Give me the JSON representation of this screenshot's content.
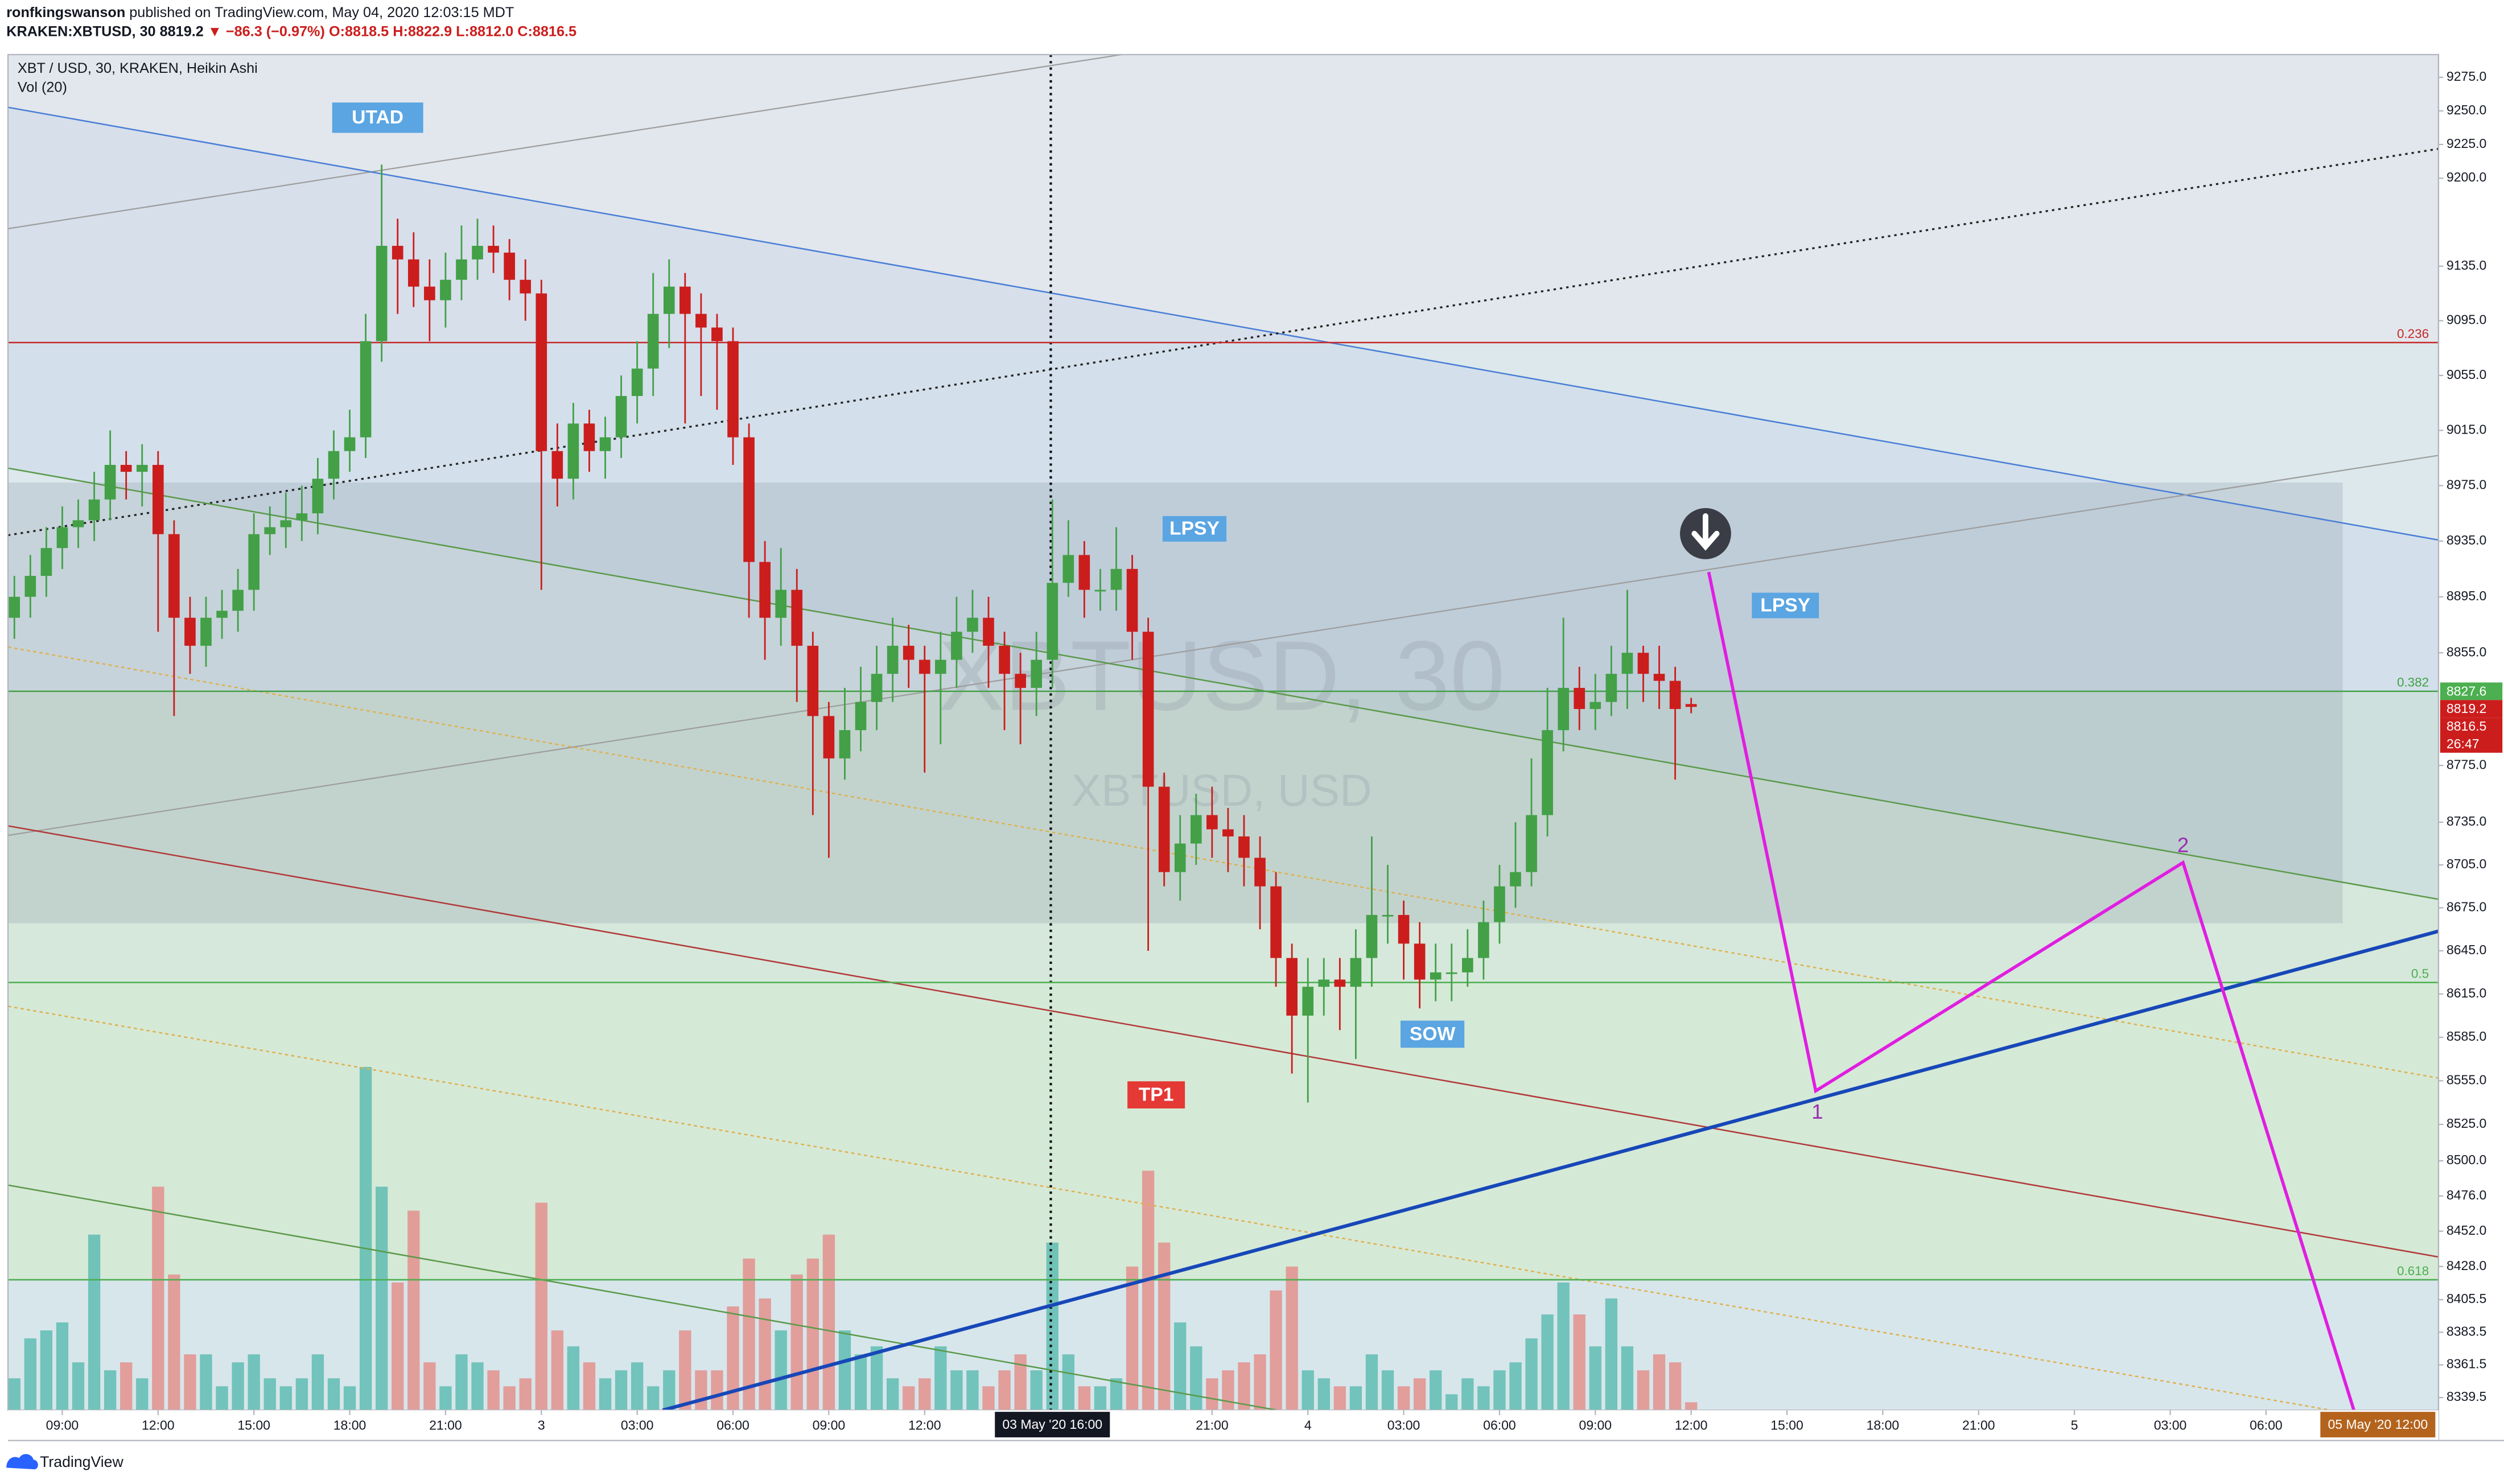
{
  "chart_data": {
    "type": "candlestick",
    "publisher": "ronfkingswanson",
    "published": "published on TradingView.com, May 04, 2020 12:03:15 MDT",
    "symbol": "KRAKEN:XBTUSD, 30",
    "last": "8819.2",
    "change": "▼ −86.3 (−0.97%)",
    "ohlc": [
      "O:8818.5",
      "H:8822.9",
      "L:8812.0",
      "C:8816.5"
    ],
    "title": "XBT / USD, 30, KRAKEN, Heikin Ashi",
    "watermark": [
      "XBTUSD, 30",
      "XBTUSD, USD"
    ],
    "brand": "TradingView",
    "up_color": "#43a047",
    "down_color": "#cc1d1d",
    "log_scale": true,
    "grid": false,
    "ylim": [
      8331,
      9292
    ],
    "xlim": [
      -0.4,
      151.8
    ],
    "yticks": [
      {
        "value": 9275,
        "label": "9275.0"
      },
      {
        "value": 9250,
        "label": "9250.0"
      },
      {
        "value": 9225,
        "label": "9225.0"
      },
      {
        "value": 9200,
        "label": "9200.0"
      },
      {
        "value": 9135,
        "label": "9135.0"
      },
      {
        "value": 9095,
        "label": "9095.0"
      },
      {
        "value": 9055,
        "label": "9055.0"
      },
      {
        "value": 9015,
        "label": "9015.0"
      },
      {
        "value": 8975,
        "label": "8975.0"
      },
      {
        "value": 8935,
        "label": "8935.0"
      },
      {
        "value": 8895,
        "label": "8895.0"
      },
      {
        "value": 8855,
        "label": "8855.0"
      },
      {
        "value": 8775,
        "label": "8775.0"
      },
      {
        "value": 8735,
        "label": "8735.0"
      },
      {
        "value": 8705,
        "label": "8705.0"
      },
      {
        "value": 8675,
        "label": "8675.0"
      },
      {
        "value": 8645,
        "label": "8645.0"
      },
      {
        "value": 8615,
        "label": "8615.0"
      },
      {
        "value": 8585,
        "label": "8585.0"
      },
      {
        "value": 8555,
        "label": "8555.0"
      },
      {
        "value": 8525,
        "label": "8525.0"
      },
      {
        "value": 8500,
        "label": "8500.0"
      },
      {
        "value": 8476,
        "label": "8476.0"
      },
      {
        "value": 8452,
        "label": "8452.0"
      },
      {
        "value": 8428,
        "label": "8428.0"
      },
      {
        "value": 8405.5,
        "label": "8405.5"
      },
      {
        "value": 8383.5,
        "label": "8383.5"
      },
      {
        "value": 8361.5,
        "label": "8361.5"
      },
      {
        "value": 8339.5,
        "label": "8339.5"
      }
    ],
    "xticks": [
      {
        "value": 3,
        "label": "09:00"
      },
      {
        "value": 9,
        "label": "12:00"
      },
      {
        "value": 15,
        "label": "15:00"
      },
      {
        "value": 21,
        "label": "18:00"
      },
      {
        "value": 27,
        "label": "21:00"
      },
      {
        "value": 33,
        "label": "3"
      },
      {
        "value": 39,
        "label": "03:00"
      },
      {
        "value": 45,
        "label": "06:00"
      },
      {
        "value": 51,
        "label": "09:00"
      },
      {
        "value": 57,
        "label": "12:00"
      },
      {
        "value": 75,
        "label": "21:00"
      },
      {
        "value": 81,
        "label": "4"
      },
      {
        "value": 87,
        "label": "03:00"
      },
      {
        "value": 93,
        "label": "06:00"
      },
      {
        "value": 99,
        "label": "09:00"
      },
      {
        "value": 105,
        "label": "12:00"
      },
      {
        "value": 111,
        "label": "15:00"
      },
      {
        "value": 117,
        "label": "18:00"
      },
      {
        "value": 123,
        "label": "21:00"
      },
      {
        "value": 129,
        "label": "5"
      },
      {
        "value": 135,
        "label": "03:00"
      },
      {
        "value": 141,
        "label": "06:00"
      }
    ],
    "crosshair_labels": [
      {
        "value": 65,
        "label": "03 May '20   16:00",
        "color": "#131722"
      },
      {
        "value": 148,
        "label": "05 May '20   12:00",
        "color": "#b4631d"
      }
    ],
    "open": [
      8880,
      8895,
      8910,
      8930,
      8945,
      8950,
      8965,
      8990,
      8985,
      8990,
      8940,
      8880,
      8860,
      8880,
      8885,
      8900,
      8940,
      8945,
      8950,
      8955,
      8980,
      9000,
      9010,
      9080,
      9150,
      9140,
      9120,
      9110,
      9125,
      9140,
      9150,
      9145,
      9125,
      9115,
      9000,
      8980,
      9020,
      9000,
      9010,
      9040,
      9060,
      9100,
      9120,
      9100,
      9090,
      9080,
      9010,
      8920,
      8880,
      8900,
      8860,
      8810,
      8780,
      8800,
      8820,
      8840,
      8860,
      8850,
      8840,
      8850,
      8870,
      8880,
      8860,
      8840,
      8830,
      8850,
      8905,
      8925,
      8900,
      8900,
      8915,
      8870,
      8760,
      8700,
      8720,
      8740,
      8730,
      8725,
      8710,
      8690,
      8640,
      8600,
      8620,
      8625,
      8620,
      8640,
      8670,
      8670,
      8650,
      8625,
      8630,
      8630,
      8640,
      8665,
      8690,
      8700,
      8740,
      8800,
      8830,
      8815,
      8820,
      8840,
      8855,
      8840,
      8835,
      8818.5
    ],
    "high": [
      8910,
      8925,
      8945,
      8960,
      8965,
      8985,
      9015,
      9000,
      9005,
      9000,
      8950,
      8895,
      8895,
      8900,
      8915,
      8955,
      8960,
      8970,
      8975,
      8995,
      9015,
      9030,
      9100,
      9210,
      9170,
      9160,
      9140,
      9145,
      9165,
      9170,
      9165,
      9155,
      9140,
      9125,
      9020,
      9035,
      9030,
      9025,
      9055,
      9080,
      9130,
      9140,
      9130,
      9115,
      9100,
      9090,
      9020,
      8935,
      8930,
      8915,
      8870,
      8820,
      8830,
      8845,
      8860,
      8880,
      8875,
      8860,
      8870,
      8895,
      8900,
      8895,
      8870,
      8855,
      8870,
      8965,
      8950,
      8935,
      8915,
      8945,
      8925,
      8880,
      8770,
      8740,
      8755,
      8760,
      8745,
      8740,
      8725,
      8700,
      8650,
      8640,
      8640,
      8640,
      8660,
      8725,
      8705,
      8680,
      8665,
      8650,
      8650,
      8660,
      8680,
      8705,
      8735,
      8780,
      8830,
      8880,
      8845,
      8840,
      8860,
      8900,
      8860,
      8860,
      8845,
      8822.9
    ],
    "low": [
      8865,
      8880,
      8895,
      8915,
      8930,
      8935,
      8950,
      8965,
      8960,
      8870,
      8810,
      8840,
      8845,
      8865,
      8870,
      8885,
      8925,
      8930,
      8935,
      8940,
      8965,
      8985,
      8995,
      9065,
      9100,
      9105,
      9080,
      9090,
      9110,
      9125,
      9130,
      9110,
      9095,
      8900,
      8960,
      8965,
      8985,
      8980,
      8995,
      9020,
      9040,
      9075,
      9020,
      9040,
      9030,
      8990,
      8880,
      8850,
      8860,
      8820,
      8740,
      8710,
      8765,
      8785,
      8800,
      8820,
      8830,
      8770,
      8790,
      8830,
      8855,
      8830,
      8800,
      8790,
      8810,
      8830,
      8895,
      8880,
      8885,
      8885,
      8850,
      8645,
      8690,
      8680,
      8705,
      8710,
      8700,
      8690,
      8660,
      8620,
      8560,
      8540,
      8600,
      8590,
      8570,
      8620,
      8650,
      8625,
      8605,
      8610,
      8610,
      8620,
      8625,
      8650,
      8675,
      8690,
      8725,
      8785,
      8800,
      8800,
      8810,
      8815,
      8820,
      8815,
      8765,
      8812
    ],
    "close": [
      8895,
      8910,
      8930,
      8945,
      8950,
      8965,
      8990,
      8985,
      8990,
      8940,
      8880,
      8860,
      8880,
      8885,
      8900,
      8940,
      8945,
      8950,
      8955,
      8980,
      9000,
      9010,
      9080,
      9150,
      9140,
      9120,
      9110,
      9125,
      9140,
      9150,
      9145,
      9125,
      9115,
      9000,
      8980,
      9020,
      9000,
      9010,
      9040,
      9060,
      9100,
      9120,
      9100,
      9090,
      9080,
      9010,
      8920,
      8880,
      8900,
      8860,
      8810,
      8780,
      8800,
      8820,
      8840,
      8860,
      8850,
      8840,
      8850,
      8870,
      8880,
      8860,
      8840,
      8830,
      8850,
      8905,
      8925,
      8900,
      8900,
      8915,
      8870,
      8760,
      8700,
      8720,
      8740,
      8730,
      8725,
      8710,
      8690,
      8640,
      8600,
      8620,
      8625,
      8620,
      8640,
      8670,
      8670,
      8650,
      8625,
      8630,
      8630,
      8640,
      8665,
      8690,
      8700,
      8740,
      8800,
      8830,
      8815,
      8820,
      8840,
      8855,
      8840,
      8835,
      8815,
      8816.5
    ],
    "volume": {
      "name": "Vol (20)",
      "up_color": "#5fbcb3",
      "down_color": "#e3908d",
      "values": [
        20,
        45,
        50,
        55,
        30,
        110,
        25,
        30,
        20,
        140,
        85,
        35,
        35,
        15,
        30,
        35,
        20,
        15,
        20,
        35,
        20,
        15,
        215,
        140,
        80,
        125,
        30,
        15,
        35,
        30,
        25,
        15,
        20,
        130,
        50,
        40,
        30,
        20,
        25,
        30,
        15,
        25,
        50,
        25,
        25,
        65,
        95,
        70,
        50,
        85,
        95,
        110,
        50,
        35,
        40,
        20,
        15,
        20,
        40,
        25,
        25,
        15,
        25,
        35,
        25,
        105,
        35,
        15,
        15,
        20,
        90,
        150,
        105,
        55,
        40,
        20,
        25,
        30,
        35,
        75,
        90,
        25,
        20,
        15,
        15,
        35,
        25,
        15,
        20,
        25,
        10,
        20,
        15,
        25,
        30,
        45,
        60,
        80,
        60,
        40,
        70,
        40,
        25,
        35,
        30,
        5
      ]
    },
    "fib": [
      {
        "level": "0.236",
        "price": 9079,
        "color": "#c62828"
      },
      {
        "level": "0.382",
        "price": 8827.6,
        "color": "#43a047"
      },
      {
        "level": "0.5",
        "price": 8623,
        "color": "#4caf50"
      },
      {
        "level": "0.618",
        "price": 8419,
        "color": "#4caf50"
      }
    ],
    "price_labels": [
      {
        "price": 8827.6,
        "color": "#4caf50"
      },
      {
        "price": 8819.2,
        "color": "#cc1d1d"
      },
      {
        "price": 8816.5,
        "color": "#cc1d1d"
      }
    ],
    "countdown": "26:47",
    "annotations": [
      "UTAD",
      "LPSY",
      "LPSY",
      "SOW",
      "TP1",
      "1",
      "2"
    ]
  }
}
